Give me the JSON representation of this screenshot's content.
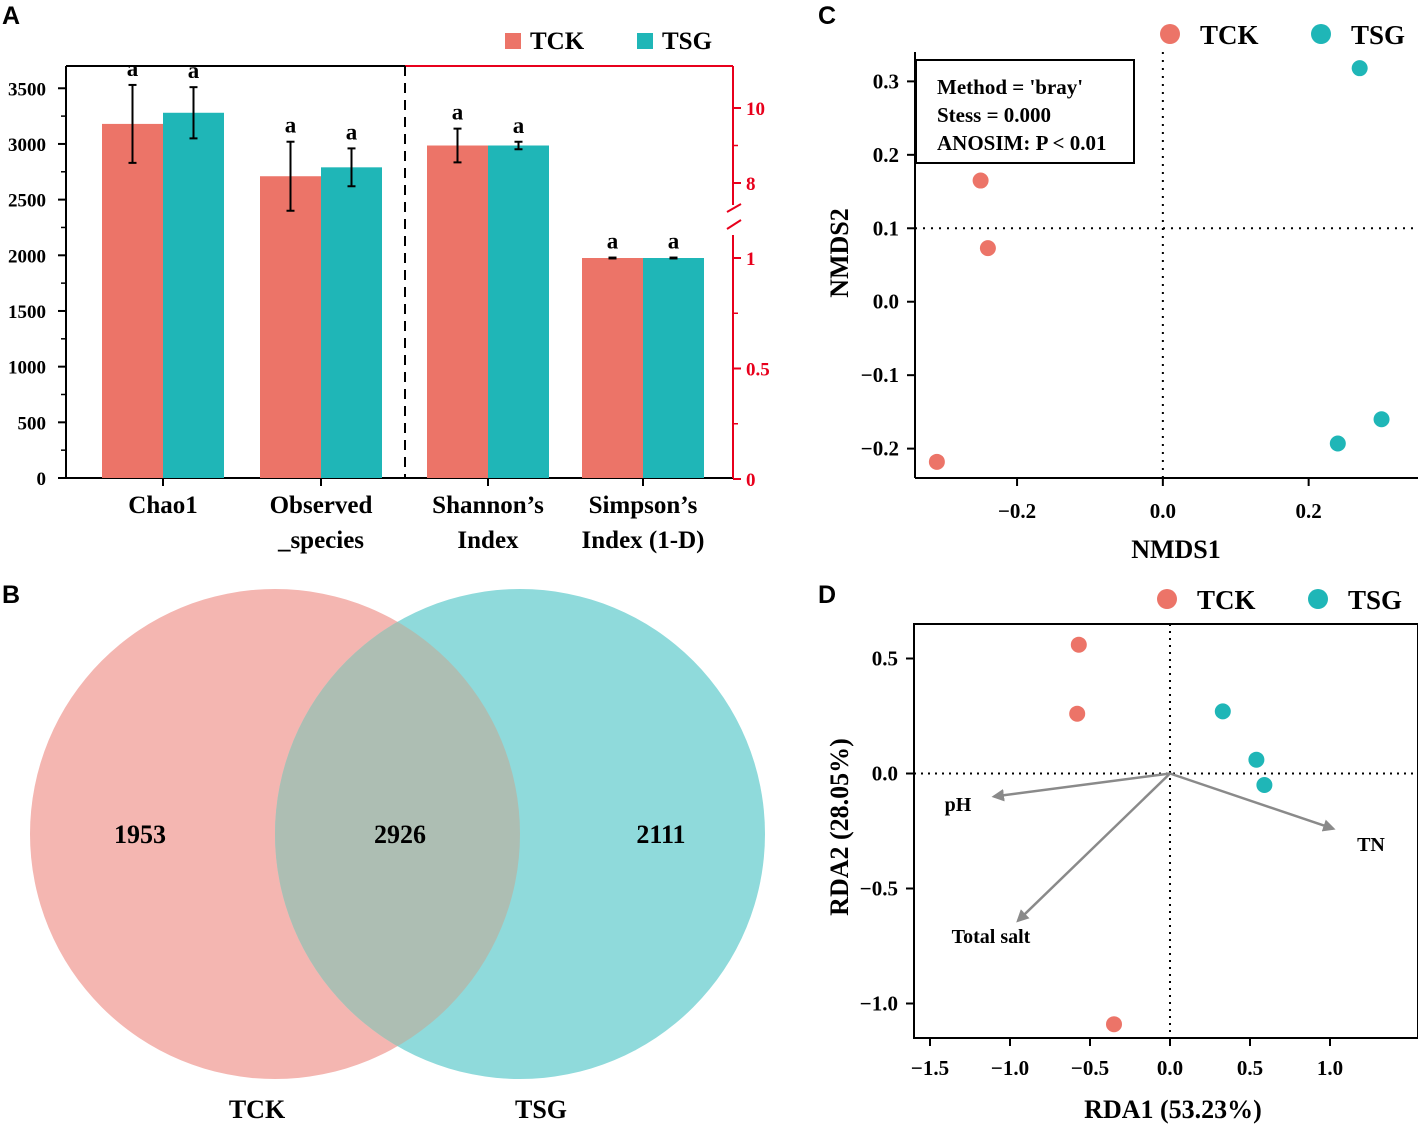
{
  "colors": {
    "tck": "#EC7468",
    "tsg": "#1FB6B7",
    "tck_light": "#F4B6B1",
    "tsg_light": "#8FDADB",
    "overlap": "#ADBEB3",
    "axis_red": "#E8001C"
  },
  "panels": {
    "a": "A",
    "b": "B",
    "c": "C",
    "d": "D"
  },
  "legend": [
    "TCK",
    "TSG"
  ],
  "chart_data": [
    {
      "id": "A",
      "type": "bar",
      "legend": [
        "TCK",
        "TSG"
      ],
      "left_axis": {
        "ylim": [
          0,
          3700
        ],
        "ticks": [
          0,
          500,
          1000,
          1500,
          2000,
          2500,
          3000,
          3500
        ]
      },
      "right_axis": {
        "broken": true,
        "lower_ticks": [
          0,
          0.5,
          1
        ],
        "upper_ticks": [
          8,
          10
        ]
      },
      "groups": [
        {
          "label": [
            "Chao1"
          ],
          "axis": "left",
          "values": [
            3180,
            3280
          ],
          "errors": [
            350,
            230
          ],
          "sig": [
            "a",
            "a"
          ]
        },
        {
          "label": [
            "Observed",
            "_species"
          ],
          "axis": "left",
          "values": [
            2710,
            2790
          ],
          "errors": [
            310,
            170
          ],
          "sig": [
            "a",
            "a"
          ]
        },
        {
          "label": [
            "Shannon’s",
            "Index"
          ],
          "axis": "right",
          "values": [
            9.0,
            9.0
          ],
          "errors": [
            0.45,
            0.1
          ],
          "sig": [
            "a",
            "a"
          ]
        },
        {
          "label": [
            "Simpson’s",
            "Index (1-D)"
          ],
          "axis": "right",
          "values": [
            1.0,
            1.0
          ],
          "errors": [
            0.002,
            0.002
          ],
          "sig": [
            "a",
            "a"
          ]
        }
      ]
    },
    {
      "id": "B",
      "type": "venn",
      "sets": [
        "TCK",
        "TSG"
      ],
      "counts": {
        "only_TCK": "1953",
        "shared": "2926",
        "only_TSG": "2111"
      }
    },
    {
      "id": "C",
      "type": "scatter",
      "xlabel": "NMDS1",
      "ylabel": "NMDS2",
      "xlim": [
        -0.34,
        0.35
      ],
      "ylim": [
        -0.24,
        0.34
      ],
      "xticks": [
        -0.2,
        0.0,
        0.2
      ],
      "yticks": [
        -0.2,
        -0.1,
        0.0,
        0.1,
        0.2,
        0.3
      ],
      "xtick_labels": [
        "−0.2",
        "0.0",
        "0.2"
      ],
      "ytick_labels": [
        "−0.2",
        "−0.1",
        "0.0",
        "0.1",
        "0.2",
        "0.3"
      ],
      "ref_lines": {
        "x": 0.0,
        "y": 0.1
      },
      "annotation": [
        "Method = 'bray'",
        "Stess = 0.000",
        "ANOSIM: P < 0.01"
      ],
      "series": [
        {
          "name": "TCK",
          "points": [
            [
              -0.25,
              0.165
            ],
            [
              -0.24,
              0.073
            ],
            [
              -0.31,
              -0.218
            ]
          ]
        },
        {
          "name": "TSG",
          "points": [
            [
              0.27,
              0.318
            ],
            [
              0.3,
              -0.16
            ],
            [
              0.24,
              -0.193
            ]
          ]
        }
      ]
    },
    {
      "id": "D",
      "type": "scatter",
      "xlabel": "RDA1 (53.23%)",
      "ylabel": "RDA2 (28.05%)",
      "xlim": [
        -1.6,
        1.55
      ],
      "ylim": [
        -1.15,
        0.65
      ],
      "xticks": [
        -1.5,
        -1.0,
        -0.5,
        0.0,
        0.5,
        1.0
      ],
      "yticks": [
        -1.0,
        -0.5,
        0.0,
        0.5
      ],
      "xtick_labels": [
        "−1.5",
        "−1.0",
        "−0.5",
        "0.0",
        "0.5",
        "1.0"
      ],
      "ytick_labels": [
        "−1.0",
        "−0.5",
        "0.0",
        "0.5"
      ],
      "ref_lines": {
        "x": 0.0,
        "y": 0.0
      },
      "series": [
        {
          "name": "TCK",
          "points": [
            [
              -0.57,
              0.56
            ],
            [
              -0.58,
              0.26
            ],
            [
              -0.35,
              -1.09
            ]
          ]
        },
        {
          "name": "TSG",
          "points": [
            [
              0.33,
              0.27
            ],
            [
              0.54,
              0.06
            ],
            [
              0.59,
              -0.05
            ]
          ]
        }
      ],
      "arrows": [
        {
          "label": "pH",
          "x": -1.1,
          "y": -0.1
        },
        {
          "label": "TN",
          "x": 1.02,
          "y": -0.24
        },
        {
          "label": "Total salt",
          "x": -0.95,
          "y": -0.64
        }
      ]
    }
  ]
}
